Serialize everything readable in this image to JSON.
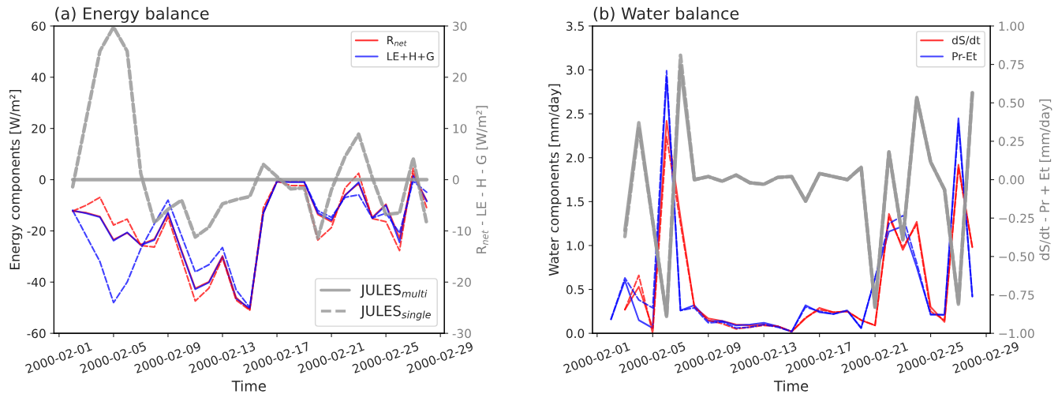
{
  "chart_data": [
    {
      "type": "line",
      "title": "(a) Energy balance",
      "xlabel": "Time",
      "ylabel": "Energy components [W/m²]",
      "y2label": "R$_{net}$ - LE - H - G [W/m²]",
      "x": [
        "2000-02-02",
        "2000-02-03",
        "2000-02-04",
        "2000-02-05",
        "2000-02-06",
        "2000-02-07",
        "2000-02-08",
        "2000-02-09",
        "2000-02-10",
        "2000-02-11",
        "2000-02-12",
        "2000-02-13",
        "2000-02-14",
        "2000-02-15",
        "2000-02-16",
        "2000-02-17",
        "2000-02-18",
        "2000-02-19",
        "2000-02-20",
        "2000-02-21",
        "2000-02-22",
        "2000-02-23",
        "2000-02-24",
        "2000-02-25",
        "2000-02-26",
        "2000-02-27",
        "2000-02-28"
      ],
      "xlim": [
        "2000-01-31T15:00",
        "2000-02-29T07:00"
      ],
      "xticks": [
        "2000-02-01",
        "2000-02-05",
        "2000-02-09",
        "2000-02-13",
        "2000-02-17",
        "2000-02-21",
        "2000-02-25",
        "2000-02-29"
      ],
      "ylim": [
        -60,
        60
      ],
      "yticks": [
        -60,
        -40,
        -20,
        0,
        20,
        40,
        60
      ],
      "y2lim": [
        -30,
        30
      ],
      "y2ticks": [
        -30,
        -20,
        -10,
        0,
        10,
        20,
        30
      ],
      "legend": "top right",
      "series": [
        {
          "name": "R$_{net}$",
          "color": "#ff0000",
          "line_style": "solid",
          "values": [
            -12.3,
            -12.9,
            -14.4,
            -23.4,
            -20.8,
            -25.3,
            -23.2,
            -13.3,
            -27.8,
            -42.4,
            -39.9,
            -29.8,
            -46,
            -50.7,
            -13.1,
            -0.6,
            -0.8,
            -0.8,
            -13.6,
            -16.4,
            -5.9,
            -1.5,
            -14.7,
            -9.6,
            -22.9,
            2.3,
            -8.2
          ]
        },
        {
          "name": "LE+H+G",
          "color": "#0000ff",
          "line_style": "solid",
          "values": [
            -12.0,
            -13.2,
            -14.6,
            -23.8,
            -20.6,
            -25.6,
            -23.6,
            -12.8,
            -28.2,
            -42.8,
            -40.2,
            -30.2,
            -46.5,
            -50.3,
            -12.7,
            -0.8,
            -1.0,
            -1.0,
            -13.0,
            -15.8,
            -6.2,
            -1.0,
            -15.0,
            -10.0,
            -24.5,
            1.5,
            -8.5
          ]
        },
        {
          "color": "#ff0000",
          "line_style": "dashed",
          "values": [
            -12.3,
            -10.0,
            -6.9,
            -17.7,
            -15.4,
            -25.7,
            -26.3,
            -14.7,
            -31,
            -47.4,
            -42.4,
            -30.6,
            -47,
            -51,
            -11,
            -0.6,
            -2.3,
            -2.3,
            -23.6,
            -18.7,
            -3.3,
            2.5,
            -15.2,
            -16.4,
            -27.7,
            4.4,
            -11.1
          ]
        },
        {
          "color": "#0000ff",
          "line_style": "dashed",
          "values": [
            -12,
            -22,
            -32,
            -48,
            -40,
            -27,
            -17.2,
            -8,
            -22,
            -36,
            -33.2,
            -26.5,
            -43,
            -49.9,
            -13,
            -0.6,
            -0.7,
            -0.6,
            -12.1,
            -14.7,
            -6.9,
            -5.9,
            -15,
            -13.1,
            -20.8,
            -0.6,
            -4.9
          ]
        },
        {
          "name": "JULES$_{multi}$",
          "color": "#999999",
          "line_style": "solid",
          "axis": "y2",
          "values": [
            0,
            0,
            0,
            0,
            0,
            0,
            0,
            0,
            0,
            0,
            0,
            0,
            0,
            0,
            0,
            0,
            0,
            0,
            0,
            0,
            0,
            0,
            0,
            0,
            0,
            0,
            0
          ]
        },
        {
          "name": "JULES$_{single}$",
          "color": "#999999",
          "line_style": "dashed",
          "axis": "y2",
          "values": [
            -1.4,
            11.9,
            25.1,
            29.8,
            25.1,
            1.2,
            -8.4,
            -5.8,
            -4.0,
            -11.2,
            -9.3,
            -4.7,
            -3.9,
            -3.3,
            3.0,
            0.6,
            -1.8,
            -1.6,
            -11.4,
            -2,
            4.5,
            8.9,
            0.4,
            -6.8,
            -6.5,
            4.2,
            -8.6
          ]
        }
      ]
    },
    {
      "type": "line",
      "title": "(b) Water balance",
      "xlabel": "Time",
      "ylabel": "Water components [mm/day]",
      "y2label": "dS/dt - Pr + Et [mm/day]",
      "x": [
        "2000-02-02",
        "2000-02-03",
        "2000-02-04",
        "2000-02-05",
        "2000-02-06",
        "2000-02-07",
        "2000-02-08",
        "2000-02-09",
        "2000-02-10",
        "2000-02-11",
        "2000-02-12",
        "2000-02-13",
        "2000-02-14",
        "2000-02-15",
        "2000-02-16",
        "2000-02-17",
        "2000-02-18",
        "2000-02-19",
        "2000-02-20",
        "2000-02-21",
        "2000-02-22",
        "2000-02-23",
        "2000-02-24",
        "2000-02-25",
        "2000-02-26",
        "2000-02-27",
        "2000-02-28"
      ],
      "xlim": [
        "2000-01-31T16:00",
        "2000-02-29T07:00"
      ],
      "xticks": [
        "2000-02-01",
        "2000-02-05",
        "2000-02-09",
        "2000-02-13",
        "2000-02-17",
        "2000-02-21",
        "2000-02-25",
        "2000-02-29"
      ],
      "ylim": [
        0,
        3.5
      ],
      "yticks": [
        {
          "value": 0,
          "label": "0.0"
        },
        {
          "value": 0.5,
          "label": "0.5"
        },
        {
          "value": 1,
          "label": "1.0"
        },
        {
          "value": 1.5,
          "label": "1.5"
        },
        {
          "value": 2,
          "label": "2.0"
        },
        {
          "value": 2.5,
          "label": "2.5"
        },
        {
          "value": 3,
          "label": "3.0"
        },
        {
          "value": 3.5,
          "label": "3.5"
        }
      ],
      "y2lim": [
        -1,
        1
      ],
      "y2ticks": [
        {
          "value": -1,
          "label": "−1.00"
        },
        {
          "value": -0.75,
          "label": "−0.75"
        },
        {
          "value": -0.5,
          "label": "−0.50"
        },
        {
          "value": -0.25,
          "label": "−0.25"
        },
        {
          "value": 0,
          "label": "0.00"
        },
        {
          "value": 0.25,
          "label": "0.25"
        },
        {
          "value": 0.5,
          "label": "0.50"
        },
        {
          "value": 0.75,
          "label": "0.75"
        },
        {
          "value": 1,
          "label": "1.00"
        }
      ],
      "legend": "top right",
      "series": [
        {
          "name": "dS/dt",
          "color": "#ff0000",
          "line_style": "solid",
          "values": [
            null,
            0.27,
            0.53,
            0.06,
            2.42,
            1.32,
            0.3,
            0.17,
            0.14,
            0.1,
            0.09,
            0.1,
            0.08,
            0.02,
            0.17,
            0.29,
            0.24,
            0.25,
            0.15,
            0.09,
            1.36,
            0.95,
            1.27,
            0.3,
            0.13,
            1.92,
            0.98
          ]
        },
        {
          "name": "Pr-Et",
          "color": "#0000ff",
          "line_style": "solid",
          "values": [
            0.16,
            0.6,
            0.15,
            0.06,
            2.92,
            0.26,
            0.32,
            0.14,
            0.14,
            0.09,
            0.1,
            0.12,
            0.08,
            0.02,
            0.32,
            0.24,
            0.22,
            0.26,
            0.06,
            0.63,
            1.16,
            1.22,
            0.75,
            0.22,
            0.21,
            2.45,
            0.42
          ]
        },
        {
          "color": "#ff0000",
          "line_style": "dashed",
          "values": [
            null,
            0.27,
            0.66,
            0.0,
            2.24,
            1.25,
            0.3,
            0.15,
            0.11,
            0.05,
            0.07,
            0.09,
            0.08,
            0.02,
            0.18,
            0.27,
            0.24,
            0.25,
            0.15,
            0.09,
            1.32,
            0.98,
            1.24,
            0.25,
            0.15,
            1.89,
            0.98
          ]
        },
        {
          "color": "#0000ff",
          "line_style": "dashed",
          "values": [
            0.16,
            0.63,
            0.38,
            0.29,
            2.99,
            0.26,
            0.29,
            0.12,
            0.13,
            0.06,
            0.07,
            0.1,
            0.07,
            0.02,
            0.3,
            0.25,
            0.22,
            0.26,
            0.06,
            0.63,
            1.25,
            1.34,
            0.8,
            0.21,
            0.21,
            2.39,
            0.42
          ]
        },
        {
          "color": "#999999",
          "line_style": "solid",
          "axis": "y2",
          "values": [
            null,
            -0.33,
            0.37,
            -0.27,
            -0.89,
            0.74,
            0.0,
            0.02,
            -0.01,
            0.03,
            -0.02,
            -0.03,
            0.015,
            0.02,
            -0.14,
            0.04,
            0.02,
            0.0,
            0.08,
            -0.83,
            0.18,
            -0.39,
            0.535,
            0.115,
            -0.065,
            -0.81,
            0.566
          ]
        },
        {
          "color": "#999999",
          "line_style": "dashed",
          "axis": "y2",
          "values": [
            null,
            -0.37,
            0.34,
            -0.27,
            -0.89,
            0.81,
            0.0,
            0.02,
            -0.01,
            0.03,
            -0.02,
            -0.03,
            0.015,
            0.02,
            -0.14,
            0.04,
            0.02,
            0.0,
            0.08,
            -0.83,
            0.18,
            -0.39,
            0.535,
            0.115,
            -0.065,
            -0.81,
            0.566
          ]
        }
      ]
    }
  ]
}
